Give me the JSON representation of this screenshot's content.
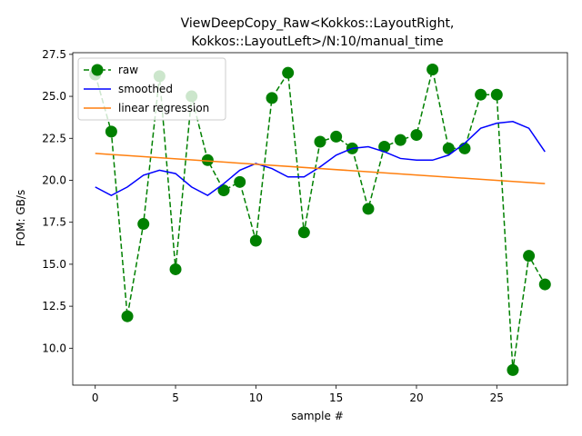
{
  "chart_data": {
    "type": "line",
    "title_lines": [
      "ViewDeepCopy_Raw<Kokkos::LayoutRight,",
      "Kokkos::LayoutLeft>/N:10/manual_time"
    ],
    "xlabel": "sample #",
    "ylabel": "FOM: GB/s",
    "xlim": [
      -1.4,
      29.4
    ],
    "ylim": [
      7.8,
      27.6
    ],
    "x_ticks": [
      0,
      5,
      10,
      15,
      20,
      25
    ],
    "x_tick_labels": [
      "0",
      "5",
      "10",
      "15",
      "20",
      "25"
    ],
    "y_ticks": [
      10.0,
      12.5,
      15.0,
      17.5,
      20.0,
      22.5,
      25.0,
      27.5
    ],
    "y_tick_labels": [
      "10.0",
      "12.5",
      "15.0",
      "17.5",
      "20.0",
      "22.5",
      "25.0",
      "27.5"
    ],
    "grid": false,
    "legend_position": "top-left",
    "series": [
      {
        "name": "raw",
        "color": "#008000",
        "style": "dashed-with-circle-markers",
        "x": [
          0,
          1,
          2,
          3,
          4,
          5,
          6,
          7,
          8,
          9,
          10,
          11,
          12,
          13,
          14,
          15,
          16,
          17,
          18,
          19,
          20,
          21,
          22,
          23,
          24,
          25,
          26,
          27,
          28
        ],
        "values": [
          26.3,
          22.9,
          11.9,
          17.4,
          26.2,
          14.7,
          25.0,
          21.2,
          19.4,
          19.9,
          16.4,
          24.9,
          26.4,
          16.9,
          22.3,
          22.6,
          21.9,
          18.3,
          22.0,
          22.4,
          22.7,
          26.6,
          21.9,
          21.9,
          25.1,
          25.1,
          8.7,
          15.5,
          13.8
        ]
      },
      {
        "name": "smoothed",
        "color": "#0000ff",
        "style": "solid",
        "x": [
          0,
          1,
          2,
          3,
          4,
          5,
          6,
          7,
          8,
          9,
          10,
          11,
          12,
          13,
          14,
          15,
          16,
          17,
          18,
          19,
          20,
          21,
          22,
          23,
          24,
          25,
          26,
          27,
          28
        ],
        "values": [
          19.6,
          19.1,
          19.6,
          20.3,
          20.6,
          20.4,
          19.6,
          19.1,
          19.8,
          20.6,
          21.0,
          20.7,
          20.2,
          20.2,
          20.8,
          21.5,
          21.9,
          22.0,
          21.7,
          21.3,
          21.2,
          21.2,
          21.5,
          22.2,
          23.1,
          23.4,
          23.5,
          23.1,
          21.7
        ]
      },
      {
        "name": "linear regression",
        "color": "#ff7f0e",
        "style": "solid",
        "x": [
          0,
          28
        ],
        "values": [
          21.6,
          19.8
        ]
      }
    ]
  }
}
